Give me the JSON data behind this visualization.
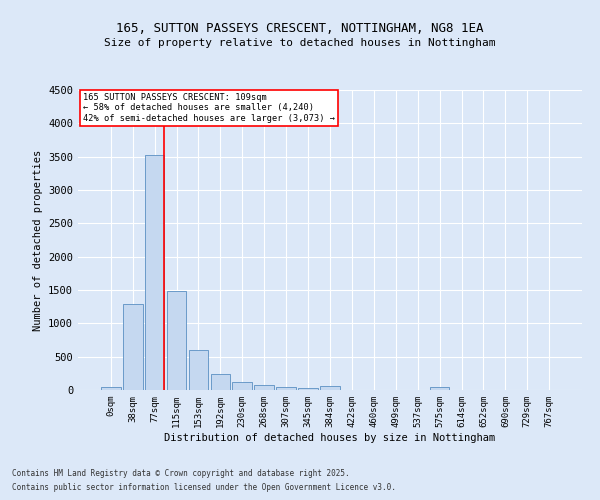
{
  "title1": "165, SUTTON PASSEYS CRESCENT, NOTTINGHAM, NG8 1EA",
  "title2": "Size of property relative to detached houses in Nottingham",
  "xlabel": "Distribution of detached houses by size in Nottingham",
  "ylabel": "Number of detached properties",
  "bin_labels": [
    "0sqm",
    "38sqm",
    "77sqm",
    "115sqm",
    "153sqm",
    "192sqm",
    "230sqm",
    "268sqm",
    "307sqm",
    "345sqm",
    "384sqm",
    "422sqm",
    "460sqm",
    "499sqm",
    "537sqm",
    "575sqm",
    "614sqm",
    "652sqm",
    "690sqm",
    "729sqm",
    "767sqm"
  ],
  "bar_values": [
    40,
    1290,
    3530,
    1490,
    595,
    245,
    115,
    75,
    50,
    30,
    55,
    0,
    0,
    0,
    0,
    50,
    0,
    0,
    0,
    0,
    0
  ],
  "bar_color": "#c5d8f0",
  "bar_edge_color": "#5a8fc2",
  "ylim": [
    0,
    4500
  ],
  "yticks": [
    0,
    500,
    1000,
    1500,
    2000,
    2500,
    3000,
    3500,
    4000,
    4500
  ],
  "red_line_color": "#ff0000",
  "annotation_line1": "165 SUTTON PASSEYS CRESCENT: 109sqm",
  "annotation_line2": "← 58% of detached houses are smaller (4,240)",
  "annotation_line3": "42% of semi-detached houses are larger (3,073) →",
  "footer1": "Contains HM Land Registry data © Crown copyright and database right 2025.",
  "footer2": "Contains public sector information licensed under the Open Government Licence v3.0.",
  "background_color": "#dce8f8",
  "grid_color": "#ffffff"
}
